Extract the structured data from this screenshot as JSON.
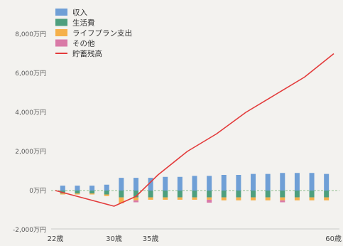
{
  "chart_data": {
    "type": "bar",
    "title": "",
    "xlabel": "",
    "ylabel": "",
    "ylim": [
      -2000,
      8500
    ],
    "y_ticks": [
      {
        "value": 8000,
        "label": "8,000万円"
      },
      {
        "value": 6000,
        "label": "6,000万円"
      },
      {
        "value": 4000,
        "label": "4,000万円"
      },
      {
        "value": 2000,
        "label": "2,000万円"
      },
      {
        "value": 0,
        "label": "0万円"
      },
      {
        "value": -2000,
        "label": "-2,000万円"
      }
    ],
    "x_ticks": [
      {
        "age": 22,
        "label": "22歳"
      },
      {
        "age": 30,
        "label": "30歳"
      },
      {
        "age": 35,
        "label": "35歳"
      },
      {
        "age": 60,
        "label": "60歳"
      }
    ],
    "legend": [
      {
        "name": "収入",
        "color": "#6f9fd6"
      },
      {
        "name": "生活費",
        "color": "#4d9f7e"
      },
      {
        "name": "ライフプラン支出",
        "color": "#f5b04a"
      },
      {
        "name": "その他",
        "color": "#d97aa7"
      },
      {
        "name": "貯蓄残高",
        "color": "#e33b3b"
      }
    ],
    "bar_ages": [
      23,
      25,
      27,
      29,
      31,
      33,
      35,
      37,
      39,
      41,
      43,
      45,
      47,
      49,
      51,
      53,
      55,
      57,
      59
    ],
    "series": [
      {
        "name": "収入",
        "color": "#6f9fd6",
        "values": [
          250,
          250,
          250,
          300,
          650,
          650,
          650,
          700,
          700,
          750,
          750,
          800,
          800,
          850,
          850,
          900,
          900,
          900,
          850
        ]
      },
      {
        "name": "生活費",
        "color": "#4d9f7e",
        "values": [
          -150,
          -150,
          -150,
          -200,
          -350,
          -350,
          -350,
          -350,
          -350,
          -350,
          -350,
          -350,
          -350,
          -350,
          -350,
          -350,
          -350,
          -350,
          -350
        ]
      },
      {
        "name": "ライフプラン支出",
        "color": "#f5b04a",
        "values": [
          -50,
          -50,
          -50,
          -80,
          -300,
          -150,
          -120,
          -120,
          -120,
          -120,
          -120,
          -150,
          -150,
          -150,
          -150,
          -150,
          -150,
          -150,
          -150
        ]
      },
      {
        "name": "その他",
        "color": "#d97aa7",
        "values": [
          0,
          0,
          0,
          0,
          0,
          -100,
          0,
          0,
          0,
          0,
          -150,
          0,
          0,
          0,
          0,
          -100,
          0,
          0,
          0
        ]
      }
    ],
    "line": {
      "name": "貯蓄残高",
      "color": "#e33b3b",
      "points": [
        [
          22,
          0
        ],
        [
          30,
          -800
        ],
        [
          33,
          -300
        ],
        [
          36,
          800
        ],
        [
          40,
          2000
        ],
        [
          44,
          2900
        ],
        [
          48,
          4000
        ],
        [
          52,
          4900
        ],
        [
          56,
          5800
        ],
        [
          60,
          7000
        ]
      ]
    },
    "grid": false,
    "legend_position": "top-left"
  }
}
